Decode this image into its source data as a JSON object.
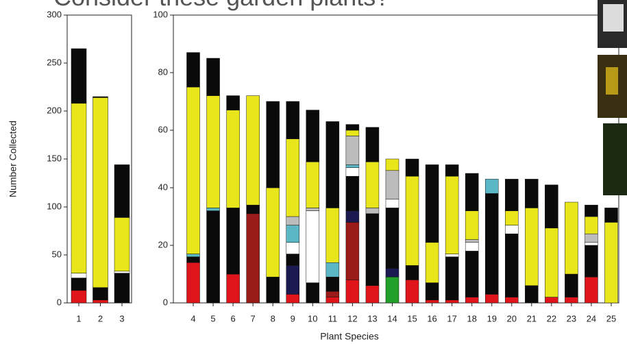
{
  "header": {
    "title": "Consider these garden plants?"
  },
  "chart_data": [
    {
      "type": "bar",
      "stacked": true,
      "y_label": "Number Collected",
      "categories": [
        "1",
        "2",
        "3"
      ],
      "ylim": [
        0,
        300
      ],
      "yticks": [
        0,
        50,
        100,
        150,
        200,
        250,
        300
      ],
      "series": [
        {
          "color": "#e0151b",
          "values": [
            13,
            3,
            0
          ]
        },
        {
          "color": "#9b1a1a",
          "values": [
            0,
            0,
            0
          ]
        },
        {
          "color": "#22a02a",
          "values": [
            0,
            0,
            0
          ]
        },
        {
          "color": "#1a1a50",
          "values": [
            0,
            0,
            0
          ]
        },
        {
          "color": "#0a0a0a",
          "values": [
            13,
            13,
            31
          ]
        },
        {
          "color": "#ffffff",
          "values": [
            5,
            0,
            2
          ]
        },
        {
          "color": "#5cb7c5",
          "values": [
            0,
            0,
            0
          ]
        },
        {
          "color": "#bcbcbc",
          "values": [
            0,
            0,
            0
          ]
        },
        {
          "color": "#e8e51a",
          "values": [
            177,
            198,
            56
          ]
        },
        {
          "color": "#0a0a0a",
          "values": [
            57,
            1,
            55
          ]
        }
      ]
    },
    {
      "type": "bar",
      "stacked": true,
      "x_label": "Plant Species",
      "categories": [
        "4",
        "5",
        "6",
        "7",
        "8",
        "9",
        "10",
        "11",
        "12",
        "13",
        "14",
        "15",
        "16",
        "17",
        "18",
        "19",
        "20",
        "21",
        "22",
        "23",
        "24",
        "25"
      ],
      "ylim": [
        0,
        100
      ],
      "yticks": [
        0,
        20,
        40,
        60,
        80,
        100
      ],
      "series": [
        {
          "color": "#e0151b",
          "values": [
            14,
            0,
            10,
            0,
            0,
            3,
            0,
            2,
            8,
            6,
            0,
            8,
            1,
            1,
            2,
            3,
            2,
            0,
            2,
            2,
            9,
            0
          ]
        },
        {
          "color": "#9b1a1a",
          "values": [
            0,
            0,
            0,
            31,
            0,
            0,
            0,
            2,
            20,
            0,
            0,
            0,
            0,
            0,
            0,
            0,
            0,
            0,
            0,
            0,
            0,
            0
          ]
        },
        {
          "color": "#22a02a",
          "values": [
            0,
            0,
            0,
            0,
            0,
            0,
            0,
            0,
            0,
            0,
            9,
            0,
            0,
            0,
            0,
            0,
            0,
            0,
            0,
            0,
            0,
            0
          ]
        },
        {
          "color": "#1a1a50",
          "values": [
            0,
            0,
            0,
            0,
            0,
            10,
            0,
            0,
            4,
            0,
            3,
            0,
            0,
            0,
            0,
            0,
            0,
            0,
            0,
            0,
            0,
            0
          ]
        },
        {
          "color": "#0a0a0a",
          "values": [
            2,
            32,
            23,
            3,
            9,
            4,
            7,
            5,
            12,
            25,
            21,
            5,
            6,
            15,
            16,
            35,
            22,
            6,
            0,
            8,
            11,
            0
          ]
        },
        {
          "color": "#ffffff",
          "values": [
            0,
            0,
            0,
            0,
            0,
            4,
            25,
            0,
            3,
            0,
            3,
            0,
            0,
            1,
            3,
            0,
            3,
            0,
            0,
            0,
            1,
            0
          ]
        },
        {
          "color": "#5cb7c5",
          "values": [
            1,
            1,
            0,
            0,
            0,
            6,
            0,
            5,
            1,
            0,
            0,
            0,
            0,
            0,
            0,
            5,
            0,
            0,
            0,
            0,
            0,
            0
          ]
        },
        {
          "color": "#bcbcbc",
          "values": [
            0,
            0,
            0,
            0,
            0,
            3,
            1,
            0,
            10,
            2,
            10,
            0,
            0,
            0,
            1,
            0,
            0,
            0,
            0,
            0,
            3,
            0
          ]
        },
        {
          "color": "#e8e51a",
          "values": [
            58,
            39,
            34,
            38,
            31,
            27,
            16,
            19,
            2,
            16,
            4,
            31,
            14,
            27,
            10,
            0,
            5,
            27,
            24,
            25,
            6,
            28
          ]
        },
        {
          "color": "#0a0a0a",
          "values": [
            12,
            13,
            5,
            0,
            30,
            13,
            18,
            30,
            2,
            12,
            0,
            6,
            27,
            4,
            13,
            0,
            11,
            10,
            15,
            0,
            4,
            5
          ]
        }
      ]
    }
  ]
}
